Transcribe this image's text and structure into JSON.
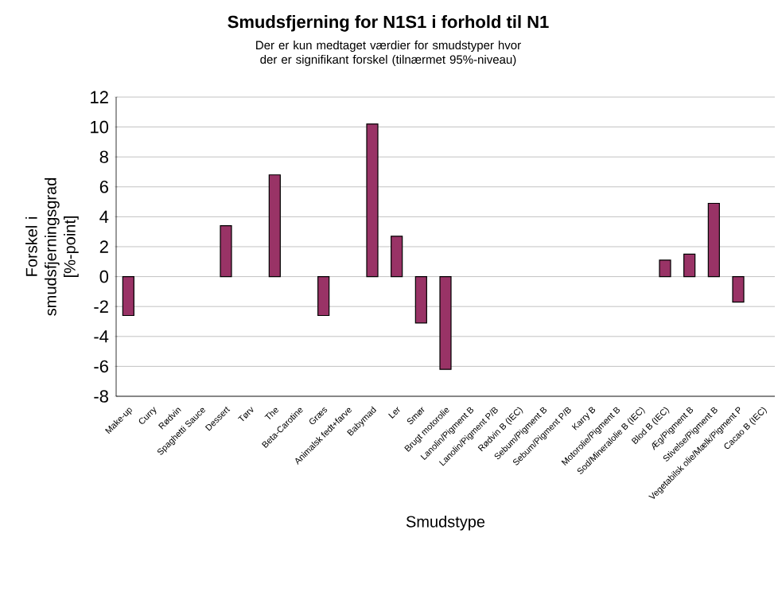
{
  "chart_data": {
    "type": "bar",
    "title": "Smudsfjerning for N1S1 i forhold til N1",
    "subtitle": "Der er kun medtaget værdier for smudstyper hvor der er signifikant forskel (tilnærmet 95%-niveau)",
    "xlabel": "Smudstype",
    "ylabel": "Forskel i smudsfjerningsgrad [%-point]",
    "categories": [
      "Make-up",
      "Curry",
      "Rødvin",
      "Spaghetti Sauce",
      "Dessert",
      "Tørv",
      "The",
      "Beta-Carotine",
      "Græs",
      "Animalsk fedt+farve",
      "Babymad",
      "Ler",
      "Smør",
      "Brugt motorolie",
      "Lanolin/Pigment B",
      "Lanolin/Pigment P/B",
      "Rødvin B (IEC)",
      "Sebum/Pigment B",
      "Sebum/Pigment P/B",
      "Karry B",
      "Motorolie/Pigment B",
      "Sod/Mineralolie B (IEC)",
      "Blod B (IEC)",
      "Æg/Pigment B",
      "Stivelse/Pigment B",
      "Vegetabilsk olie/Mælk/Pigment P",
      "Cacao B (IEC)"
    ],
    "values": [
      -2.6,
      null,
      null,
      null,
      3.4,
      null,
      6.8,
      null,
      -2.6,
      null,
      10.2,
      2.7,
      -3.1,
      -6.2,
      null,
      null,
      null,
      null,
      null,
      null,
      null,
      null,
      1.1,
      1.5,
      4.9,
      -1.7,
      null
    ],
    "color": "#993366",
    "ylim": [
      -8,
      12
    ],
    "yticks": [
      -8,
      -6,
      -4,
      -2,
      0,
      2,
      4,
      6,
      8,
      10,
      12
    ],
    "grid": "y"
  }
}
